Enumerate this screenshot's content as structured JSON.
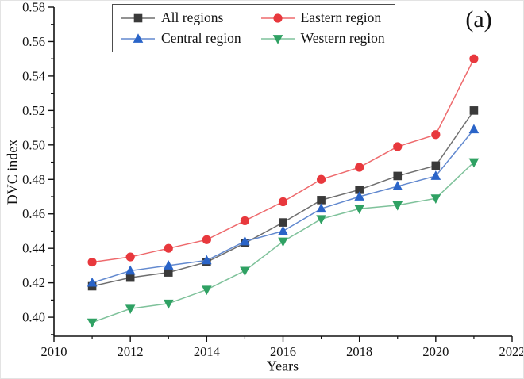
{
  "figure": {
    "panel_label": "(a)"
  },
  "chart_data": {
    "type": "line",
    "title": "",
    "xlabel": "Years",
    "ylabel": "DVC index",
    "x": [
      2011,
      2012,
      2013,
      2014,
      2015,
      2016,
      2017,
      2018,
      2019,
      2020,
      2021
    ],
    "series": [
      {
        "name": "All regions",
        "marker": "square",
        "marker_color": "#3a3a3a",
        "line_color": "#6e6e6e",
        "values": [
          0.418,
          0.423,
          0.426,
          0.432,
          0.443,
          0.455,
          0.468,
          0.474,
          0.482,
          0.488,
          0.52
        ]
      },
      {
        "name": "Eastern region",
        "marker": "circle",
        "marker_color": "#e8383d",
        "line_color": "#ee6a6d",
        "values": [
          0.432,
          0.435,
          0.44,
          0.445,
          0.456,
          0.467,
          0.48,
          0.487,
          0.499,
          0.506,
          0.55
        ]
      },
      {
        "name": "Central region",
        "marker": "triangle-up",
        "marker_color": "#2a64c8",
        "line_color": "#6289cf",
        "values": [
          0.42,
          0.427,
          0.43,
          0.433,
          0.444,
          0.45,
          0.463,
          0.47,
          0.476,
          0.482,
          0.509
        ]
      },
      {
        "name": "Western region",
        "marker": "triangle-down",
        "marker_color": "#2fa163",
        "line_color": "#7fc29b",
        "values": [
          0.397,
          0.405,
          0.408,
          0.416,
          0.427,
          0.444,
          0.457,
          0.463,
          0.465,
          0.469,
          0.49
        ]
      }
    ],
    "xlim": [
      2010,
      2022
    ],
    "ylim": [
      0.389,
      0.58
    ],
    "x_ticks": [
      2010,
      2012,
      2014,
      2016,
      2018,
      2020,
      2022
    ],
    "y_ticks": [
      0.4,
      0.42,
      0.44,
      0.46,
      0.48,
      0.5,
      0.52,
      0.54,
      0.56,
      0.58
    ],
    "x_minor_ticks": [
      2011,
      2013,
      2015,
      2017,
      2019,
      2021
    ],
    "y_minor_ticks": [
      0.39,
      0.41,
      0.43,
      0.45,
      0.47,
      0.49,
      0.51,
      0.53,
      0.55,
      0.57
    ],
    "grid": false,
    "legend_position": "top-center",
    "axis_color": "#111111"
  }
}
